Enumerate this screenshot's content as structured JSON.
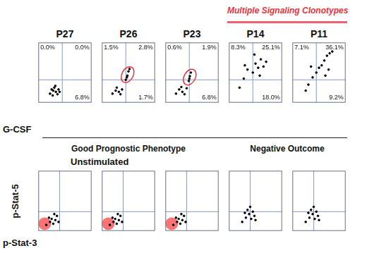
{
  "figure": {
    "header": "Multiple Signaling Clonotypes",
    "row_labels": [
      "G-CSF",
      "Unstimulated"
    ],
    "group_labels": [
      "Good Prognostic Phenotype",
      "Negative Outcome"
    ],
    "x_label": "p-Stat-3",
    "y_label": "p-Stat-5"
  },
  "chart_data": [
    {
      "type": "scatter",
      "title": "P27",
      "color": "#000000",
      "xlim": [
        0,
        100
      ],
      "ylim": [
        0,
        100
      ],
      "xticks": [],
      "yticks": [],
      "tick_labels": false,
      "grid": false,
      "gate_x": 45,
      "gate_y": 38,
      "x": [
        22,
        28,
        33,
        30,
        25,
        36,
        38,
        27,
        32,
        40
      ],
      "y": [
        15,
        20,
        18,
        25,
        22,
        14,
        22,
        12,
        28,
        18
      ],
      "quadrants": {
        "UL": 0.0,
        "UR": 0.0,
        "LR": 6.8
      },
      "quadrant_labels": {
        "UL": "0.0%",
        "UR": "0.0%",
        "LR": "6.8%"
      }
    },
    {
      "type": "scatter",
      "title": "P26",
      "color": "#000000",
      "xlim": [
        0,
        100
      ],
      "ylim": [
        0,
        100
      ],
      "xticks": [],
      "yticks": [],
      "tick_labels": false,
      "grid": false,
      "gate_x": 45,
      "gate_y": 38,
      "x": [
        20,
        26,
        32,
        28,
        35,
        38,
        45,
        48,
        50,
        47,
        52
      ],
      "y": [
        15,
        20,
        18,
        25,
        14,
        22,
        38,
        45,
        52,
        42,
        56
      ],
      "quadrants": {
        "UL": 1.5,
        "UR": 2.8,
        "LR": 1.7
      },
      "quadrant_labels": {
        "UL": "1.5%",
        "UR": "2.8%",
        "LR": "1.7%"
      }
    },
    {
      "type": "scatter",
      "title": "P23",
      "color": "#000000",
      "xlim": [
        0,
        100
      ],
      "ylim": [
        0,
        100
      ],
      "xticks": [],
      "yticks": [],
      "tick_labels": false,
      "grid": false,
      "gate_x": 45,
      "gate_y": 38,
      "x": [
        20,
        26,
        32,
        30,
        36,
        40,
        44,
        46,
        48,
        45
      ],
      "y": [
        15,
        22,
        18,
        26,
        14,
        24,
        36,
        44,
        50,
        40
      ],
      "quadrants": {
        "UL": 0.6,
        "UR": 1.9,
        "LR": 6.8
      },
      "quadrant_labels": {
        "UL": "0.6%",
        "UR": "1.9%",
        "LR": "6.8%"
      }
    },
    {
      "type": "scatter",
      "title": "P14",
      "color": "#000000",
      "xlim": [
        0,
        100
      ],
      "ylim": [
        0,
        100
      ],
      "xticks": [],
      "yticks": [],
      "tick_labels": false,
      "grid": false,
      "gate_x": 45,
      "gate_y": 38,
      "x": [
        20,
        28,
        35,
        30,
        45,
        50,
        55,
        60,
        48,
        65,
        58,
        70
      ],
      "y": [
        25,
        40,
        55,
        62,
        50,
        65,
        58,
        72,
        80,
        60,
        45,
        68
      ],
      "quadrants": {
        "UL": 8.3,
        "UR": 25.1,
        "LR": 18.0
      },
      "quadrant_labels": {
        "UL": "8.3%",
        "UR": "25.1%",
        "LR": "18.0%"
      }
    },
    {
      "type": "scatter",
      "title": "P11",
      "color": "#000000",
      "xlim": [
        0,
        100
      ],
      "ylim": [
        0,
        100
      ],
      "xticks": [],
      "yticks": [],
      "tick_labels": false,
      "grid": false,
      "gate_x": 45,
      "gate_y": 38,
      "x": [
        25,
        30,
        38,
        45,
        50,
        55,
        60,
        65,
        70,
        62,
        68,
        75,
        35
      ],
      "y": [
        20,
        30,
        42,
        50,
        58,
        62,
        70,
        78,
        82,
        45,
        55,
        85,
        60
      ],
      "quadrants": {
        "UL": 7.1,
        "UR": 36.1,
        "LR": 9.2
      },
      "quadrant_labels": {
        "UL": "7.1%",
        "UR": "36.1%",
        "LR": "9.2%"
      }
    },
    {
      "type": "scatter",
      "color": "#000000",
      "xlim": [
        0,
        100
      ],
      "ylim": [
        0,
        100
      ],
      "xticks": [],
      "yticks": [],
      "tick_labels": false,
      "grid": false,
      "gate_x": 40,
      "gate_y": 32,
      "x": [
        15,
        22,
        28,
        25,
        32,
        35,
        30,
        20,
        38
      ],
      "y": [
        10,
        15,
        12,
        20,
        18,
        25,
        28,
        22,
        15
      ]
    },
    {
      "type": "scatter",
      "color": "#000000",
      "xlim": [
        0,
        100
      ],
      "ylim": [
        0,
        100
      ],
      "xticks": [],
      "yticks": [],
      "tick_labels": false,
      "grid": false,
      "gate_x": 40,
      "gate_y": 32,
      "x": [
        15,
        22,
        28,
        25,
        32,
        35,
        30,
        20,
        38
      ],
      "y": [
        10,
        15,
        12,
        20,
        18,
        25,
        28,
        22,
        15
      ]
    },
    {
      "type": "scatter",
      "color": "#000000",
      "xlim": [
        0,
        100
      ],
      "ylim": [
        0,
        100
      ],
      "xticks": [],
      "yticks": [],
      "tick_labels": false,
      "grid": false,
      "gate_x": 40,
      "gate_y": 32,
      "x": [
        15,
        22,
        28,
        25,
        32,
        35,
        30,
        20,
        38
      ],
      "y": [
        10,
        15,
        12,
        20,
        18,
        25,
        28,
        22,
        15
      ]
    },
    {
      "type": "scatter",
      "color": "#000000",
      "xlim": [
        0,
        100
      ],
      "ylim": [
        0,
        100
      ],
      "xticks": [],
      "yticks": [],
      "tick_labels": false,
      "grid": false,
      "gate_x": 40,
      "gate_y": 32,
      "x": [
        25,
        32,
        38,
        42,
        45,
        35,
        48,
        30,
        40,
        50
      ],
      "y": [
        15,
        22,
        28,
        20,
        32,
        35,
        25,
        30,
        40,
        18
      ]
    },
    {
      "type": "scatter",
      "color": "#000000",
      "xlim": [
        0,
        100
      ],
      "ylim": [
        0,
        100
      ],
      "xticks": [],
      "yticks": [],
      "tick_labels": false,
      "grid": false,
      "gate_x": 40,
      "gate_y": 32,
      "x": [
        25,
        32,
        38,
        42,
        45,
        35,
        48,
        30,
        40,
        50
      ],
      "y": [
        15,
        22,
        28,
        20,
        32,
        35,
        25,
        30,
        40,
        18
      ]
    }
  ]
}
